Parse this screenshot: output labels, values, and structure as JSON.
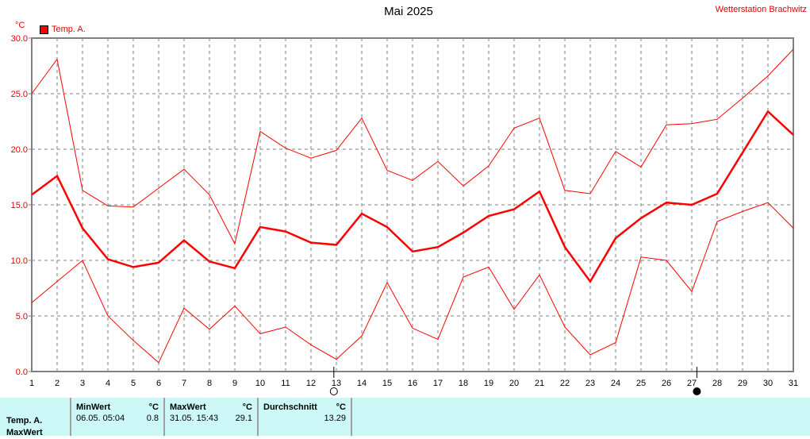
{
  "header": {
    "title": "Mai 2025",
    "station": "Wetterstation Brachwitz",
    "unit": "°C",
    "legend_label": "Temp. A."
  },
  "colors": {
    "series": "#ff0000",
    "grid": "#808080",
    "axis": "#808080",
    "table_bg": "#ccf8f8"
  },
  "chart_data": {
    "type": "line",
    "title": "Mai 2025",
    "xlabel": "",
    "ylabel": "°C",
    "ylim": [
      0,
      30
    ],
    "xlim": [
      1,
      31
    ],
    "grid": true,
    "legend_position": "top-left",
    "y_ticks": [
      "0.0",
      "5.0",
      "10.0",
      "15.0",
      "20.0",
      "25.0",
      "30.0"
    ],
    "x": [
      1,
      2,
      3,
      4,
      5,
      6,
      7,
      8,
      9,
      10,
      11,
      12,
      13,
      14,
      15,
      16,
      17,
      18,
      19,
      20,
      21,
      22,
      23,
      24,
      25,
      26,
      27,
      28,
      29,
      30,
      31
    ],
    "series": [
      {
        "name": "Temp. A. Max",
        "values": [
          25.0,
          28.1,
          16.3,
          14.9,
          14.8,
          16.5,
          18.2,
          15.9,
          11.5,
          21.6,
          20.1,
          19.2,
          19.9,
          22.8,
          18.1,
          17.2,
          18.9,
          16.7,
          18.5,
          21.9,
          22.8,
          16.3,
          16.0,
          19.8,
          18.4,
          22.2,
          22.3,
          22.7,
          24.6,
          26.6,
          29.0
        ]
      },
      {
        "name": "Temp. A. Durchschnitt",
        "values": [
          15.9,
          17.6,
          12.9,
          10.1,
          9.4,
          9.8,
          11.8,
          9.9,
          9.3,
          13.0,
          12.6,
          11.6,
          11.4,
          14.2,
          13.0,
          10.8,
          11.2,
          12.5,
          14.0,
          14.6,
          16.2,
          11.2,
          8.1,
          12.0,
          13.8,
          15.2,
          15.0,
          16.0,
          19.7,
          23.4,
          21.3
        ]
      },
      {
        "name": "Temp. A. Min",
        "values": [
          6.2,
          8.1,
          10.0,
          5.0,
          2.8,
          0.8,
          5.7,
          3.8,
          5.9,
          3.4,
          4.0,
          2.4,
          1.1,
          3.2,
          8.0,
          3.9,
          2.9,
          8.5,
          9.4,
          5.6,
          8.7,
          4.0,
          1.5,
          2.6,
          10.3,
          10.0,
          7.2,
          13.5,
          14.4,
          15.2,
          12.9
        ]
      }
    ],
    "annotations": [
      {
        "type": "moon-phase",
        "symbol": "full-moon",
        "x": 12.9
      },
      {
        "type": "moon-phase",
        "symbol": "new-moon",
        "x": 27.2
      }
    ]
  },
  "table": {
    "row_label": "Temp. A.",
    "row_label_2": "MaxWert",
    "min": {
      "header": "MinWert",
      "unit": "°C",
      "datetime": "06.05.  05:04",
      "value": "0.8"
    },
    "max": {
      "header": "MaxWert",
      "unit": "°C",
      "datetime": "31.05.  15:43",
      "value": "29.1"
    },
    "avg": {
      "header": "Durchschnitt",
      "unit": "°C",
      "value": "13.29"
    }
  }
}
